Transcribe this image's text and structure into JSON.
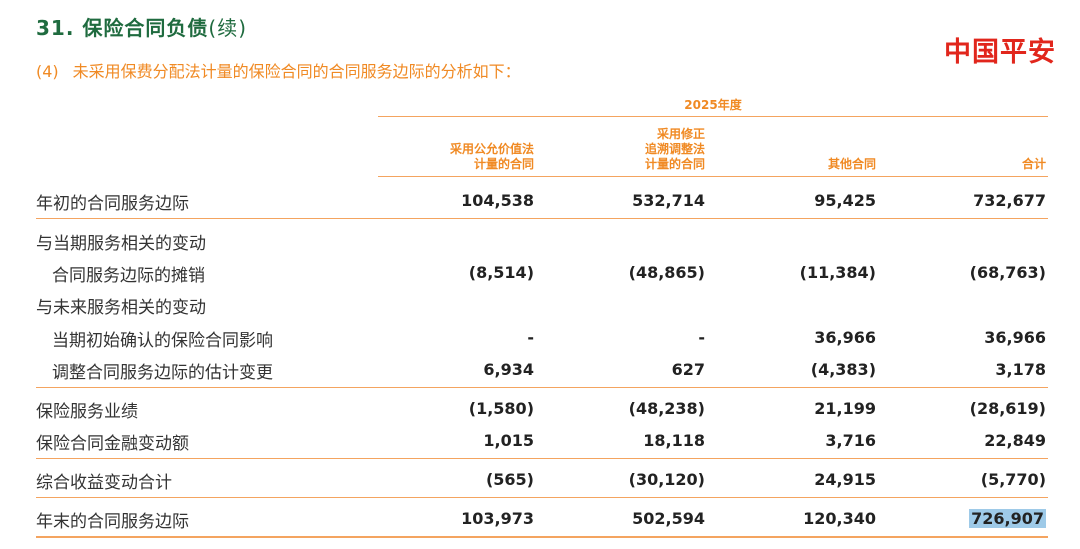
{
  "header": {
    "section_number": "31.",
    "section_title": "保险合同负债",
    "section_suffix": "(续)",
    "brand": "中国平安",
    "subsection_number": "(4)",
    "subsection_title": "未采用保费分配法计量的保险合同的合同服务边际的分析如下："
  },
  "table": {
    "year_label": "2025年度",
    "columns": [
      [
        "采用公允价值法",
        "计量的合同"
      ],
      [
        "采用修正",
        "追溯调整法",
        "计量的合同"
      ],
      [
        "其他合同"
      ],
      [
        "合计"
      ]
    ],
    "rows": [
      {
        "label": "年初的合同服务边际",
        "values": [
          "104,538",
          "532,714",
          "95,425",
          "732,677"
        ]
      },
      {
        "label": "与当期服务相关的变动",
        "values": [
          "",
          "",
          "",
          ""
        ]
      },
      {
        "label": "合同服务边际的摊销",
        "values": [
          "(8,514)",
          "(48,865)",
          "(11,384)",
          "(68,763)"
        ]
      },
      {
        "label": "与未来服务相关的变动",
        "values": [
          "",
          "",
          "",
          ""
        ]
      },
      {
        "label": "当期初始确认的保险合同影响",
        "values": [
          "-",
          "-",
          "36,966",
          "36,966"
        ]
      },
      {
        "label": "调整合同服务边际的估计变更",
        "values": [
          "6,934",
          "627",
          "(4,383)",
          "3,178"
        ]
      },
      {
        "label": "保险服务业绩",
        "values": [
          "(1,580)",
          "(48,238)",
          "21,199",
          "(28,619)"
        ]
      },
      {
        "label": "保险合同金融变动额",
        "values": [
          "1,015",
          "18,118",
          "3,716",
          "22,849"
        ]
      },
      {
        "label": "综合收益变动合计",
        "values": [
          "(565)",
          "(30,120)",
          "24,915",
          "(5,770)"
        ]
      },
      {
        "label": "年末的合同服务边际",
        "values": [
          "103,973",
          "502,594",
          "120,340",
          "726,907"
        ]
      }
    ]
  }
}
